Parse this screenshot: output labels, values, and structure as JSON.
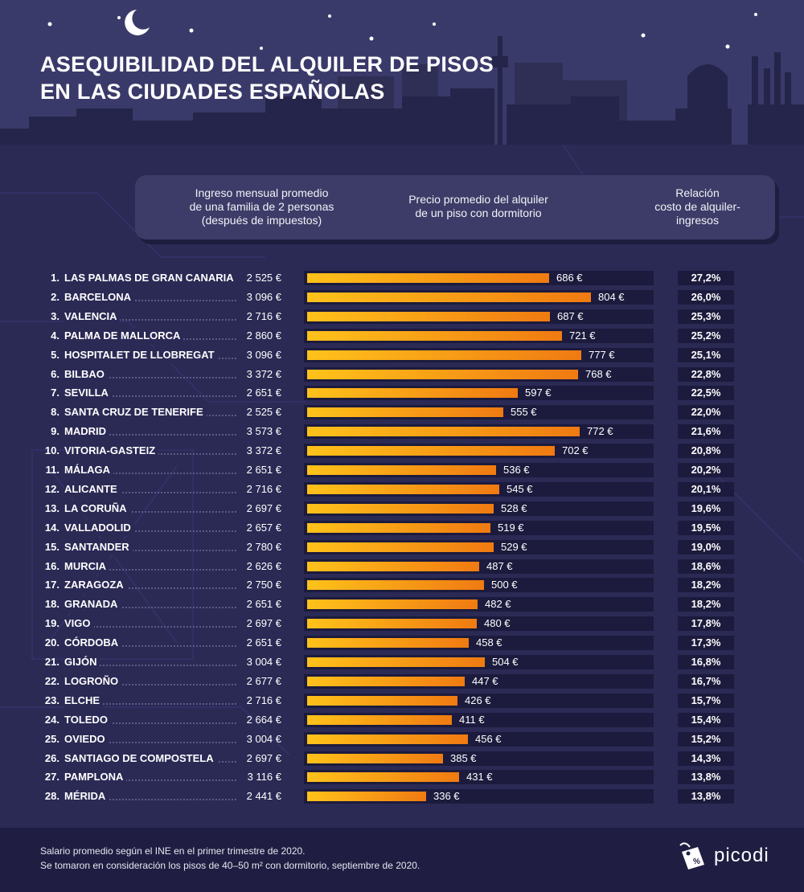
{
  "title": {
    "line1": "ASEQUIBILIDAD DEL ALQUILER DE PISOS",
    "line2": "EN LAS CIUDADES ESPAÑOLAS"
  },
  "headers": {
    "income": [
      "Ingreso mensual promedio",
      "de una familia de 2 personas",
      "(después de impuestos)"
    ],
    "rent": [
      "Precio promedio del alquiler",
      "de un piso con dormitorio"
    ],
    "ratio": [
      "Relación",
      "costo de alquiler-",
      "ingresos"
    ]
  },
  "chart_data": {
    "type": "bar",
    "xlim": [
      0,
      840
    ],
    "rows": [
      {
        "rank": "1.",
        "city": "LAS PALMAS DE GRAN CANARIA",
        "income": "2 525 €",
        "rent": 686,
        "rent_label": "686 €",
        "ratio": "27,2%"
      },
      {
        "rank": "2.",
        "city": "BARCELONA",
        "income": "3 096 €",
        "rent": 804,
        "rent_label": "804 €",
        "ratio": "26,0%"
      },
      {
        "rank": "3.",
        "city": "VALENCIA",
        "income": "2 716 €",
        "rent": 687,
        "rent_label": "687 €",
        "ratio": "25,3%"
      },
      {
        "rank": "4.",
        "city": "PALMA DE MALLORCA",
        "income": "2 860 €",
        "rent": 721,
        "rent_label": "721 €",
        "ratio": "25,2%"
      },
      {
        "rank": "5.",
        "city": "HOSPITALET DE LLOBREGAT",
        "income": "3 096 €",
        "rent": 777,
        "rent_label": "777 €",
        "ratio": "25,1%"
      },
      {
        "rank": "6.",
        "city": "BILBAO",
        "income": "3 372 €",
        "rent": 768,
        "rent_label": "768 €",
        "ratio": "22,8%"
      },
      {
        "rank": "7.",
        "city": "SEVILLA",
        "income": "2 651 €",
        "rent": 597,
        "rent_label": "597 €",
        "ratio": "22,5%"
      },
      {
        "rank": "8.",
        "city": "SANTA CRUZ DE TENERIFE",
        "income": "2 525 €",
        "rent": 555,
        "rent_label": "555 €",
        "ratio": "22,0%"
      },
      {
        "rank": "9.",
        "city": "MADRID",
        "income": "3 573 €",
        "rent": 772,
        "rent_label": "772 €",
        "ratio": "21,6%"
      },
      {
        "rank": "10.",
        "city": "VITORIA-GASTEIZ",
        "income": "3 372 €",
        "rent": 702,
        "rent_label": "702 €",
        "ratio": "20,8%"
      },
      {
        "rank": "11.",
        "city": "MÁLAGA",
        "income": "2 651 €",
        "rent": 536,
        "rent_label": "536 €",
        "ratio": "20,2%"
      },
      {
        "rank": "12.",
        "city": "ALICANTE",
        "income": "2 716 €",
        "rent": 545,
        "rent_label": "545 €",
        "ratio": "20,1%"
      },
      {
        "rank": "13.",
        "city": "LA CORUÑA",
        "income": "2 697 €",
        "rent": 528,
        "rent_label": "528 €",
        "ratio": "19,6%"
      },
      {
        "rank": "14.",
        "city": "VALLADOLID",
        "income": "2 657 €",
        "rent": 519,
        "rent_label": "519 €",
        "ratio": "19,5%"
      },
      {
        "rank": "15.",
        "city": "SANTANDER",
        "income": "2 780 €",
        "rent": 529,
        "rent_label": "529 €",
        "ratio": "19,0%"
      },
      {
        "rank": "16.",
        "city": "MURCIA",
        "income": "2 626 €",
        "rent": 487,
        "rent_label": "487 €",
        "ratio": "18,6%"
      },
      {
        "rank": "17.",
        "city": "ZARAGOZA",
        "income": "2 750 €",
        "rent": 500,
        "rent_label": "500 €",
        "ratio": "18,2%"
      },
      {
        "rank": "18.",
        "city": "GRANADA",
        "income": "2 651 €",
        "rent": 482,
        "rent_label": "482 €",
        "ratio": "18,2%"
      },
      {
        "rank": "19.",
        "city": "VIGO",
        "income": "2 697 €",
        "rent": 480,
        "rent_label": "480 €",
        "ratio": "17,8%"
      },
      {
        "rank": "20.",
        "city": "CÓRDOBA",
        "income": "2 651 €",
        "rent": 458,
        "rent_label": "458 €",
        "ratio": "17,3%"
      },
      {
        "rank": "21.",
        "city": "GIJÓN",
        "income": "3 004 €",
        "rent": 504,
        "rent_label": "504 €",
        "ratio": "16,8%"
      },
      {
        "rank": "22.",
        "city": "LOGROÑO",
        "income": "2 677 €",
        "rent": 447,
        "rent_label": "447 €",
        "ratio": "16,7%"
      },
      {
        "rank": "23.",
        "city": "ELCHE",
        "income": "2 716 €",
        "rent": 426,
        "rent_label": "426 €",
        "ratio": "15,7%"
      },
      {
        "rank": "24.",
        "city": "TOLEDO",
        "income": "2 664 €",
        "rent": 411,
        "rent_label": "411 €",
        "ratio": "15,4%"
      },
      {
        "rank": "25.",
        "city": "OVIEDO",
        "income": "3 004 €",
        "rent": 456,
        "rent_label": "456 €",
        "ratio": "15,2%"
      },
      {
        "rank": "26.",
        "city": "SANTIAGO DE COMPOSTELA",
        "income": "2 697 €",
        "rent": 385,
        "rent_label": "385 €",
        "ratio": "14,3%"
      },
      {
        "rank": "27.",
        "city": "PAMPLONA",
        "income": "3 116 €",
        "rent": 431,
        "rent_label": "431 €",
        "ratio": "13,8%"
      },
      {
        "rank": "28.",
        "city": "MÉRIDA",
        "income": "2 441 €",
        "rent": 336,
        "rent_label": "336 €",
        "ratio": "13,8%"
      }
    ]
  },
  "footer": {
    "note1": "Salario promedio según el INE en el primer trimestre de 2020.",
    "note2": "Se tomaron en consideración los pisos de 40–50 m² con dormitorio, septiembre de 2020.",
    "brand": "picodi"
  },
  "colors": {
    "bar_start": "#ffc21a",
    "bar_end": "#f07a12",
    "background": "#2b2a55",
    "header": "#3a3a6a"
  },
  "icons": [
    "moon-icon",
    "star-icon",
    "picodi-logo-icon"
  ]
}
